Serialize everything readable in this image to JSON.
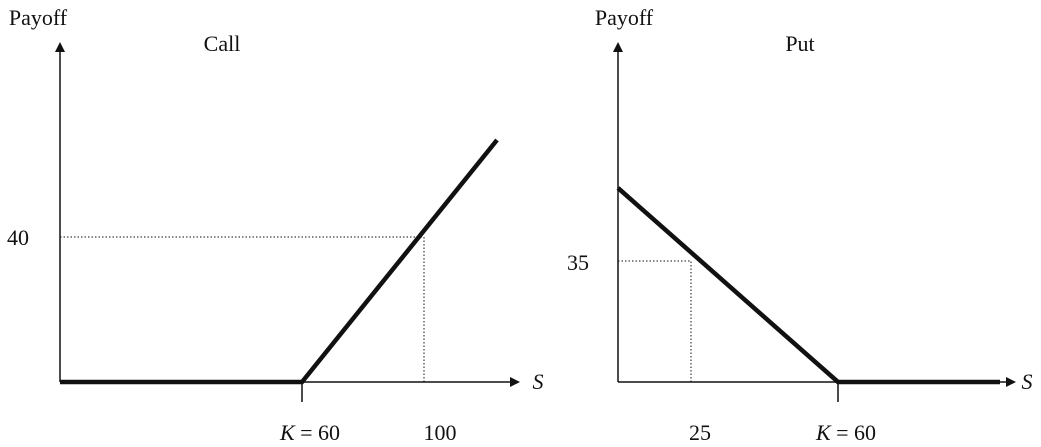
{
  "panels": [
    {
      "y_label": "Payoff",
      "title": "Call",
      "x_label": "S",
      "y_tick": "40",
      "x_ticks": [
        {
          "symbol": "K",
          "text": "= 60"
        },
        {
          "text": "100"
        }
      ]
    },
    {
      "y_label": "Payoff",
      "title": "Put",
      "x_label": "S",
      "y_tick": "35",
      "x_ticks": [
        {
          "text": "25"
        },
        {
          "symbol": "K",
          "text": "= 60"
        }
      ]
    }
  ]
}
